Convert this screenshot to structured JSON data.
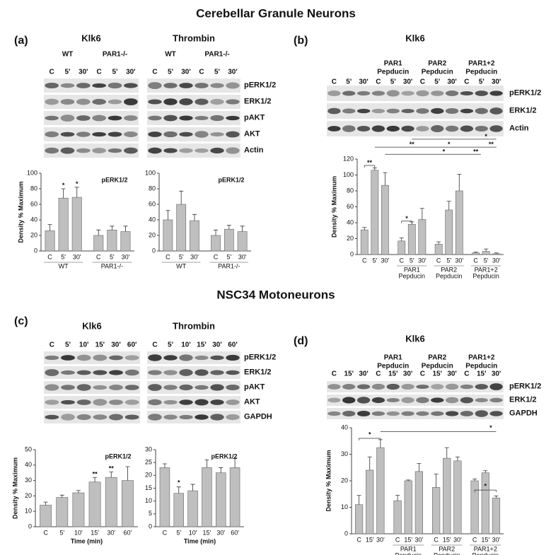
{
  "sections": [
    "Cerebellar Granule Neurons",
    "NSC34 Motoneurons"
  ],
  "panels": [
    {
      "label": "(a)",
      "rows": [
        "pERK1/2",
        "ERK1/2",
        "pAKT",
        "AKT",
        "Actin"
      ],
      "blots": [
        {
          "title": "Klk6",
          "groups": [
            "WT",
            "PAR1-/-"
          ],
          "lanes": [
            "C",
            "5'",
            "30'",
            "C",
            "5'",
            "30'"
          ]
        },
        {
          "title": "Thrombin",
          "groups": [
            "WT",
            "PAR1-/-"
          ],
          "lanes": [
            "C",
            "5'",
            "30'",
            "C",
            "5'",
            "30'"
          ]
        }
      ]
    },
    {
      "label": "(b)",
      "rows": [
        "pERK1/2",
        "ERK1/2",
        "Actin"
      ],
      "blots": [
        {
          "title": "Klk6",
          "groups": [
            [
              "PAR1",
              "Pepducin"
            ],
            [
              "PAR2",
              "Pepducin"
            ],
            [
              "PAR1+2",
              "Pepducin"
            ]
          ],
          "lanes": [
            "C",
            "5'",
            "30'",
            "C",
            "5'",
            "30'",
            "C",
            "5'",
            "30'",
            "C",
            "5'",
            "30'"
          ]
        }
      ]
    },
    {
      "label": "(c)",
      "rows": [
        "pERK1/2",
        "ERK1/2",
        "pAKT",
        "AKT",
        "GAPDH"
      ],
      "blots": [
        {
          "title": "Klk6",
          "lanes": [
            "C",
            "5'",
            "10'",
            "15'",
            "30'",
            "60'"
          ]
        },
        {
          "title": "Thrombin",
          "lanes": [
            "C",
            "5'",
            "10'",
            "15'",
            "30'",
            "60'"
          ]
        }
      ]
    },
    {
      "label": "(d)",
      "rows": [
        "pERK1/2",
        "ERK1/2",
        "GAPDH"
      ],
      "blots": [
        {
          "title": "Klk6",
          "groups": [
            [
              "PAR1",
              "Pepducin"
            ],
            [
              "PAR2",
              "Pepducin"
            ],
            [
              "PAR1+2",
              "Pepducin"
            ]
          ],
          "lanes": [
            "C",
            "15'",
            "30'",
            "C",
            "15'",
            "30'",
            "C",
            "15'",
            "30'",
            "C",
            "15'",
            "30'"
          ]
        }
      ]
    }
  ],
  "chart_data": [
    {
      "type": "bar",
      "ylabel": "Density % Maximum",
      "inset": "pERK1/2",
      "color": "#bfbfbf",
      "categories": [
        "C",
        "5'",
        "30'",
        "C",
        "5'",
        "30'"
      ],
      "values": [
        26,
        68,
        69,
        20,
        27,
        25
      ],
      "errors": [
        8,
        12,
        13,
        7,
        5,
        7
      ],
      "groups": [
        "WT",
        "PAR1-/-"
      ],
      "annotations": [
        "*",
        "*"
      ],
      "ylim": [
        0,
        100
      ],
      "yticks": [
        0,
        20,
        40,
        60,
        80,
        100
      ]
    },
    {
      "type": "bar",
      "inset": "pERK1/2",
      "color": "#bfbfbf",
      "categories": [
        "C",
        "5'",
        "30'",
        "C",
        "5'",
        "30'"
      ],
      "values": [
        40,
        60,
        39,
        20,
        28,
        25
      ],
      "errors": [
        12,
        17,
        8,
        7,
        5,
        7
      ],
      "groups": [
        "WT",
        "PAR1-/-"
      ],
      "ylim": [
        0,
        100
      ],
      "yticks": [
        0,
        20,
        40,
        60,
        80,
        100
      ]
    },
    {
      "type": "bar",
      "ylabel": "Density % Maximum",
      "color": "#bfbfbf",
      "categories": [
        "C",
        "5'",
        "30'",
        "C",
        "5'",
        "30'",
        "C",
        "5'",
        "30'",
        "C",
        "5'",
        "30'"
      ],
      "values": [
        31,
        106,
        87,
        17,
        38,
        44,
        13,
        56,
        80,
        2,
        4,
        1
      ],
      "errors": [
        3,
        3,
        16,
        4,
        3,
        14,
        3,
        11,
        21,
        1,
        3,
        1
      ],
      "groups": [
        [
          "PAR1",
          "Pepducin"
        ],
        [
          "PAR2",
          "Pepducin"
        ],
        [
          "PAR1+2",
          "Pepducin"
        ]
      ],
      "annotations": [
        "**",
        "*",
        "**",
        "*",
        "**",
        "*",
        "**",
        "*"
      ],
      "ylim": [
        0,
        120
      ],
      "yticks": [
        0,
        20,
        40,
        60,
        80,
        100,
        120
      ]
    },
    {
      "type": "bar",
      "ylabel": "Density % Maximum",
      "xlabel": "Time (min)",
      "inset": "pERK1/2",
      "color": "#bfbfbf",
      "categories": [
        "C",
        "5'",
        "10'",
        "15'",
        "30'",
        "60'"
      ],
      "values": [
        14,
        19,
        22,
        29,
        32,
        30
      ],
      "errors": [
        2,
        1.5,
        1.5,
        3,
        3.5,
        9
      ],
      "annotations": [
        "**",
        "**"
      ],
      "ylim": [
        0,
        50
      ],
      "yticks": [
        0,
        10,
        20,
        30,
        40,
        50
      ]
    },
    {
      "type": "bar",
      "xlabel": "Time (min)",
      "inset": "pERK1/2",
      "color": "#bfbfbf",
      "categories": [
        "C",
        "5'",
        "10'",
        "15'",
        "30'",
        "60'"
      ],
      "values": [
        23,
        13,
        14,
        23,
        21,
        23
      ],
      "errors": [
        1.5,
        2.5,
        2.5,
        3,
        2,
        3.5
      ],
      "annotations": [
        "*"
      ],
      "ylim": [
        0,
        30
      ],
      "yticks": [
        0,
        5,
        10,
        15,
        20,
        25,
        30
      ]
    },
    {
      "type": "bar",
      "ylabel": "Density % Maximum",
      "color": "#bfbfbf",
      "categories": [
        "C",
        "15'",
        "30'",
        "C",
        "15'",
        "30'",
        "C",
        "15'",
        "30'",
        "C",
        "15'",
        "30'"
      ],
      "values": [
        11,
        24,
        32.5,
        12.5,
        20,
        23.5,
        17.5,
        28.5,
        27.5,
        20,
        23,
        13.5
      ],
      "errors": [
        3.5,
        5,
        3,
        2,
        0.3,
        3,
        5,
        4,
        1.5,
        0.7,
        0.8,
        0.8
      ],
      "groups": [
        [
          "PAR1",
          "Pepducin"
        ],
        [
          "PAR2",
          "Pepducin"
        ],
        [
          "PAR1+2",
          "Pepducin"
        ]
      ],
      "annotations": [
        "*",
        "*",
        "*"
      ],
      "ylim": [
        0,
        40
      ],
      "yticks": [
        0,
        10,
        20,
        30,
        40
      ]
    }
  ]
}
